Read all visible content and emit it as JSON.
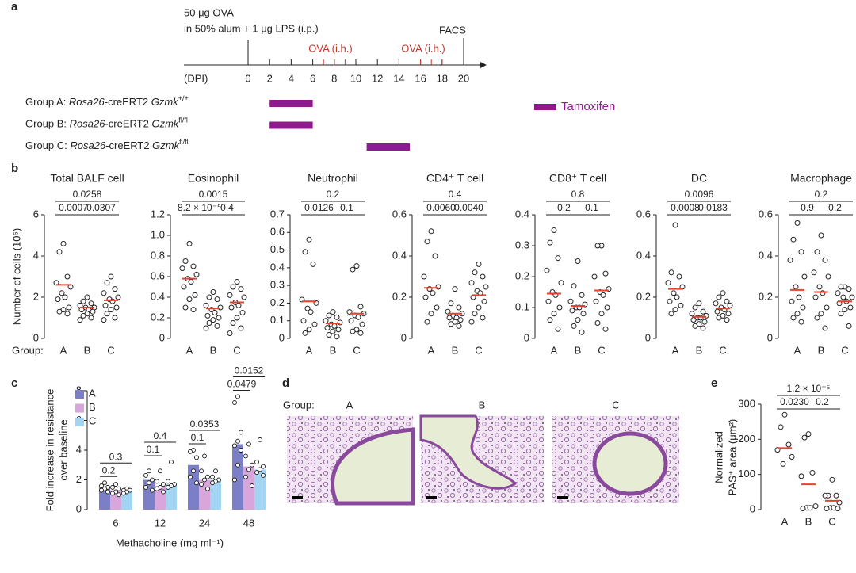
{
  "panel_labels": [
    "a",
    "b",
    "c",
    "d",
    "e"
  ],
  "panel_a": {
    "injection": [
      "50 μg OVA",
      "in 50% alum + 1 μg LPS (i.p.)"
    ],
    "axis_label": "(DPI)",
    "ticks": [
      0,
      2,
      4,
      6,
      8,
      10,
      12,
      14,
      16,
      18,
      20
    ],
    "ip_day": 0,
    "facs_day": 20,
    "facs_label": "FACS",
    "ova_days": [
      7,
      8,
      9,
      16,
      17,
      18
    ],
    "ova_labels": [
      "OVA (i.h.)",
      "OVA (i.h.)"
    ],
    "groups": [
      {
        "label": "Group A: ",
        "gene": "Rosa26",
        "construct": "-creERT2 ",
        "allele_gene": "Gzmk",
        "allele": "+/+",
        "start": 2,
        "end": 6
      },
      {
        "label": "Group B: ",
        "gene": "Rosa26",
        "construct": "-creERT2 ",
        "allele_gene": "Gzmk",
        "allele": "fl/fl",
        "start": 2,
        "end": 6
      },
      {
        "label": "Group C: ",
        "gene": "Rosa26",
        "construct": "-creERT2 ",
        "allele_gene": "Gzmk",
        "allele": "fl/fl",
        "start": 11,
        "end": 15
      }
    ],
    "legend": "Tamoxifen",
    "color": "#8e1a8e"
  },
  "panel_b": {
    "group_label": "Group:"
  },
  "panel_d": {
    "group_label": "Group:",
    "groups": [
      "A",
      "B",
      "C"
    ]
  },
  "chart_data": [
    {
      "type": "strip",
      "title": "Total BALF cell",
      "ylabel": "Number of cells (10⁶)",
      "categories": [
        "A",
        "B",
        "C"
      ],
      "mean_color": "#e8412c",
      "points": [
        [
          4.6,
          4.2,
          3.0,
          2.7,
          2.5,
          2.2,
          2.0,
          1.9,
          1.5,
          1.4,
          1.3,
          1.2
        ],
        [
          2.0,
          1.8,
          1.7,
          1.6,
          1.5,
          1.5,
          1.4,
          1.4,
          1.3,
          1.2,
          1.1,
          1.0,
          0.9
        ],
        [
          3.0,
          2.7,
          2.4,
          2.2,
          2.0,
          1.9,
          1.8,
          1.6,
          1.5,
          1.4,
          1.2,
          1.0,
          0.9
        ]
      ],
      "means": [
        2.6,
        1.5,
        1.85
      ],
      "ylim": [
        0,
        6
      ],
      "yticks": [
        0,
        2,
        4,
        6
      ],
      "p_values": [
        "0.0007",
        "0.0307",
        "0.0258"
      ]
    },
    {
      "type": "strip",
      "title": "Eosinophil",
      "categories": [
        "A",
        "B",
        "C"
      ],
      "mean_color": "#e8412c",
      "points": [
        [
          0.92,
          0.75,
          0.7,
          0.68,
          0.62,
          0.58,
          0.55,
          0.5,
          0.42,
          0.38,
          0.3,
          0.28
        ],
        [
          0.45,
          0.4,
          0.38,
          0.32,
          0.3,
          0.28,
          0.25,
          0.22,
          0.2,
          0.18,
          0.15,
          0.12,
          0.1
        ],
        [
          0.55,
          0.5,
          0.48,
          0.42,
          0.4,
          0.35,
          0.32,
          0.3,
          0.25,
          0.2,
          0.15,
          0.1,
          0.05
        ]
      ],
      "means": [
        0.58,
        0.29,
        0.35
      ],
      "ylim": [
        0,
        1.2
      ],
      "yticks": [
        0,
        0.2,
        0.4,
        0.6,
        0.8,
        {
          "value": 1,
          "label": "1.0"
        },
        1.2
      ],
      "p_values": [
        "8.2 × 10⁻⁵",
        "0.4",
        "0.0015"
      ]
    },
    {
      "type": "strip",
      "title": "Neutrophil",
      "categories": [
        "A",
        "B",
        "C"
      ],
      "mean_color": "#e8412c",
      "points": [
        [
          0.56,
          0.49,
          0.42,
          0.22,
          0.2,
          0.17,
          0.15,
          0.1,
          0.08,
          0.05,
          0.03
        ],
        [
          0.15,
          0.13,
          0.12,
          0.1,
          0.09,
          0.08,
          0.07,
          0.06,
          0.05,
          0.04,
          0.02,
          0.01
        ],
        [
          0.41,
          0.39,
          0.18,
          0.15,
          0.14,
          0.13,
          0.12,
          0.1,
          0.08,
          0.05,
          0.04,
          0.03
        ]
      ],
      "means": [
        0.21,
        0.085,
        0.14
      ],
      "ylim": [
        0,
        0.7
      ],
      "yticks": [
        0,
        0.1,
        0.2,
        0.3,
        0.4,
        0.5,
        0.6,
        0.7
      ],
      "p_values": [
        "0.0126",
        "0.1",
        "0.2"
      ]
    },
    {
      "type": "strip",
      "title": "CD4⁺ T cell",
      "categories": [
        "A",
        "B",
        "C"
      ],
      "mean_color": "#e8412c",
      "points": [
        [
          0.52,
          0.47,
          0.4,
          0.3,
          0.25,
          0.24,
          0.22,
          0.2,
          0.15,
          0.12,
          0.08
        ],
        [
          0.24,
          0.17,
          0.15,
          0.13,
          0.12,
          0.11,
          0.1,
          0.1,
          0.09,
          0.08,
          0.07,
          0.06
        ],
        [
          0.36,
          0.32,
          0.3,
          0.27,
          0.25,
          0.23,
          0.22,
          0.2,
          0.18,
          0.15,
          0.12,
          0.1,
          0.08
        ]
      ],
      "means": [
        0.245,
        0.12,
        0.21
      ],
      "ylim": [
        0,
        0.6
      ],
      "yticks": [
        0,
        0.2,
        0.4,
        0.6
      ],
      "p_values": [
        "0.0060",
        "0.0040",
        "0.4"
      ]
    },
    {
      "type": "strip",
      "title": "CD8⁺ T cell",
      "categories": [
        "A",
        "B",
        "C"
      ],
      "mean_color": "#e8412c",
      "points": [
        [
          0.35,
          0.31,
          0.26,
          0.22,
          0.18,
          0.15,
          0.14,
          0.12,
          0.1,
          0.08,
          0.06,
          0.03
        ],
        [
          0.25,
          0.17,
          0.14,
          0.12,
          0.11,
          0.1,
          0.1,
          0.09,
          0.08,
          0.06,
          0.04,
          0.02
        ],
        [
          0.3,
          0.3,
          0.21,
          0.2,
          0.16,
          0.15,
          0.14,
          0.12,
          0.1,
          0.08,
          0.05,
          0.03
        ]
      ],
      "means": [
        0.145,
        0.105,
        0.155
      ],
      "ylim": [
        0,
        0.4
      ],
      "yticks": [
        0,
        0.1,
        0.2,
        0.3,
        0.4
      ],
      "p_values": [
        "0.2",
        "0.1",
        "0.8"
      ]
    },
    {
      "type": "strip",
      "title": "DC",
      "categories": [
        "A",
        "B",
        "C"
      ],
      "mean_color": "#e8412c",
      "points": [
        [
          0.55,
          0.32,
          0.3,
          0.27,
          0.25,
          0.22,
          0.2,
          0.18,
          0.16,
          0.14,
          0.12
        ],
        [
          0.17,
          0.15,
          0.13,
          0.12,
          0.11,
          0.1,
          0.1,
          0.09,
          0.08,
          0.07,
          0.06,
          0.05
        ],
        [
          0.22,
          0.2,
          0.18,
          0.17,
          0.16,
          0.15,
          0.14,
          0.13,
          0.12,
          0.11,
          0.1,
          0.09
        ]
      ],
      "means": [
        0.24,
        0.105,
        0.145
      ],
      "ylim": [
        0,
        0.6
      ],
      "yticks": [
        0,
        0.2,
        0.4,
        0.6
      ],
      "p_values": [
        "0.0008",
        "0.0183",
        "0.0096"
      ]
    },
    {
      "type": "strip",
      "title": "Macrophage",
      "categories": [
        "A",
        "B",
        "C"
      ],
      "mean_color": "#e8412c",
      "points": [
        [
          0.56,
          0.48,
          0.42,
          0.38,
          0.3,
          0.25,
          0.2,
          0.18,
          0.15,
          0.12,
          0.1,
          0.08
        ],
        [
          0.5,
          0.42,
          0.38,
          0.32,
          0.3,
          0.25,
          0.22,
          0.2,
          0.15,
          0.12,
          0.1,
          0.05
        ],
        [
          0.25,
          0.25,
          0.24,
          0.22,
          0.2,
          0.2,
          0.18,
          0.17,
          0.15,
          0.14,
          0.12,
          0.06
        ]
      ],
      "means": [
        0.235,
        0.225,
        0.18
      ],
      "ylim": [
        0,
        0.6
      ],
      "yticks": [
        0,
        0.2,
        0.4,
        0.6
      ],
      "p_values": [
        "0.9",
        "0.2",
        "0.2"
      ]
    },
    {
      "type": "bar",
      "xlabel": "Methacholine (mg ml⁻¹)",
      "ylabel": [
        "Fold increase in resistance",
        "over baseline"
      ],
      "categories": [
        "6",
        "12",
        "24",
        "48"
      ],
      "ylim": [
        0,
        8
      ],
      "yticks": [
        0,
        2,
        4,
        6,
        8
      ],
      "series": [
        {
          "name": "A",
          "color": "#7b7fc6",
          "values": [
            1.5,
            2.0,
            3.0,
            4.4
          ],
          "points": [
            [
              1.8,
              1.6,
              1.5,
              1.4,
              1.3,
              1.2
            ],
            [
              2.6,
              2.3,
              2.0,
              1.8,
              1.5,
              1.3
            ],
            [
              4.0,
              3.9,
              3.5,
              2.6,
              2.2,
              1.8
            ],
            [
              7.6,
              7.2,
              5.2,
              4.6,
              4.3,
              4.0,
              3.0,
              2.0
            ]
          ]
        },
        {
          "name": "B",
          "color": "#d9a6dc",
          "values": [
            1.3,
            1.6,
            2.0,
            2.9
          ],
          "points": [
            [
              1.7,
              1.5,
              1.4,
              1.2,
              1.1,
              1.0
            ],
            [
              2.6,
              1.9,
              1.7,
              1.5,
              1.4,
              1.2
            ],
            [
              3.6,
              2.6,
              2.2,
              2.0,
              1.7,
              1.4
            ],
            [
              4.4,
              3.6,
              3.0,
              2.7,
              2.2,
              1.6
            ]
          ]
        },
        {
          "name": "C",
          "color": "#a3d5f2",
          "values": [
            1.3,
            1.7,
            2.0,
            2.7
          ],
          "points": [
            [
              1.4,
              1.3,
              1.3,
              1.2,
              1.1
            ],
            [
              3.2,
              1.9,
              1.7,
              1.6,
              1.5
            ],
            [
              2.6,
              2.2,
              2.0,
              1.9,
              1.8
            ],
            [
              4.7,
              3.2,
              2.9,
              2.7,
              2.5,
              2.3
            ]
          ]
        }
      ],
      "p_values": [
        [
          "0.2",
          "0.3"
        ],
        [
          "0.1",
          "0.4"
        ],
        [
          "0.1",
          "0.0353"
        ],
        [
          "0.0479",
          "0.0152"
        ]
      ]
    },
    {
      "type": "strip",
      "ylabel": [
        "Normalized",
        "PAS⁺ area (μm²)"
      ],
      "categories": [
        "A",
        "B",
        "C"
      ],
      "mean_color": "#e8412c",
      "points": [
        [
          270,
          235,
          185,
          170,
          150,
          130
        ],
        [
          215,
          205,
          105,
          95,
          10,
          5,
          5,
          3
        ],
        [
          85,
          40,
          40,
          40,
          20,
          5,
          5,
          3,
          3
        ]
      ],
      "means": [
        175,
        72,
        25
      ],
      "ylim": [
        0,
        300
      ],
      "yticks": [
        0,
        100,
        200,
        300
      ],
      "p_values": [
        "0.0230",
        "0.2",
        "1.2 × 10⁻⁵"
      ]
    }
  ]
}
